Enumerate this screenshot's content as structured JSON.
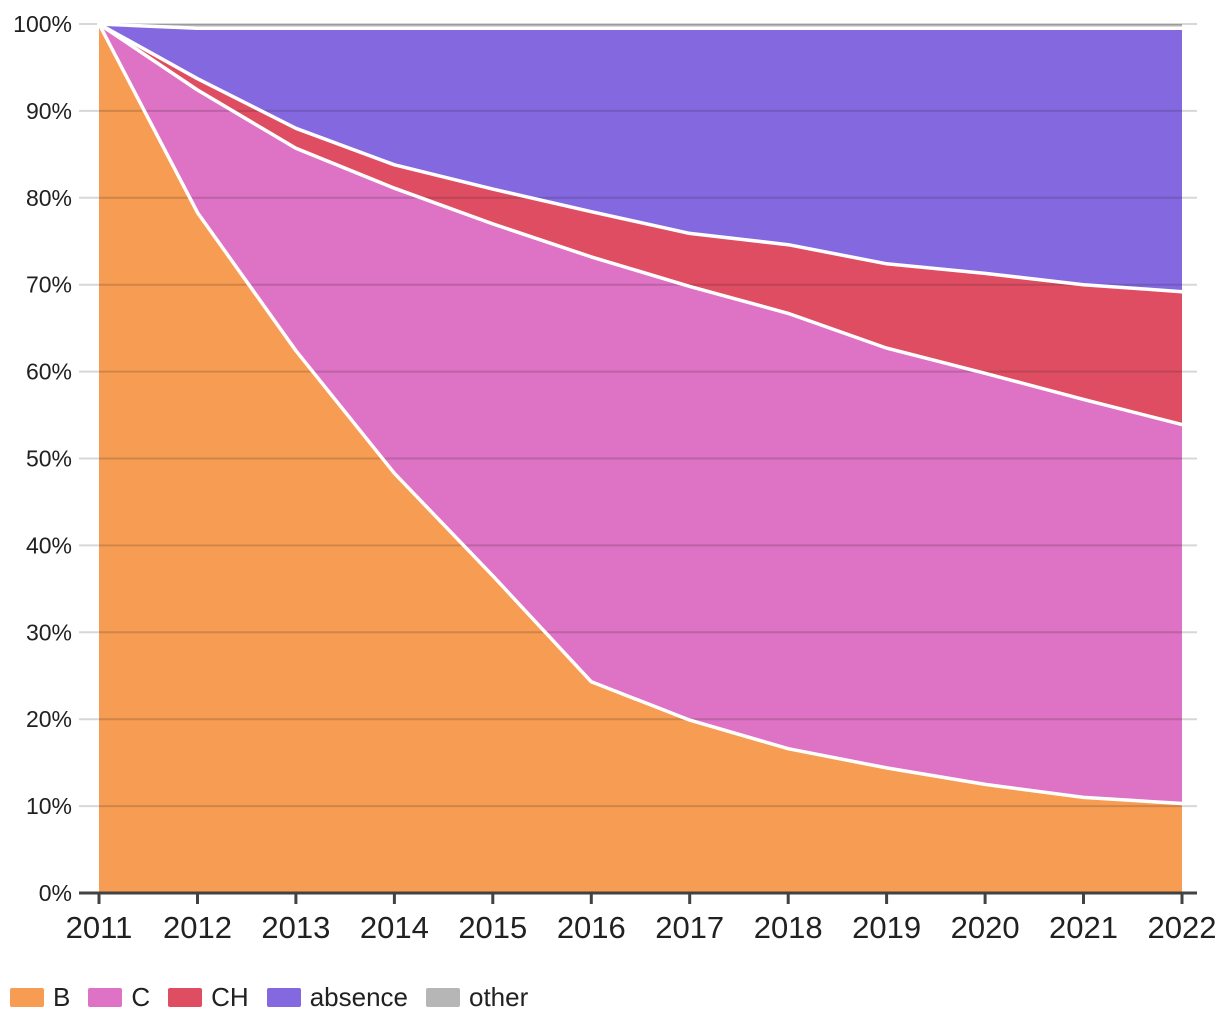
{
  "chart_data": {
    "type": "area",
    "stacked": true,
    "percentage": true,
    "title": "",
    "xlabel": "",
    "ylabel": "",
    "x": [
      2011,
      2012,
      2013,
      2014,
      2015,
      2016,
      2017,
      2018,
      2019,
      2020,
      2021,
      2022
    ],
    "x_tick_labels": [
      "2011",
      "2012",
      "2013",
      "2014",
      "2015",
      "2016",
      "2017",
      "2018",
      "2019",
      "2020",
      "2021",
      "2022"
    ],
    "series": [
      {
        "name": "B",
        "color": "#F69C53",
        "values": [
          100,
          78.3,
          62.4,
          48.3,
          36.5,
          24.3,
          19.9,
          16.6,
          14.4,
          12.5,
          11.0,
          10.3
        ]
      },
      {
        "name": "C",
        "color": "#DE72C4",
        "values": [
          0,
          14.1,
          23.3,
          32.8,
          40.5,
          48.9,
          49.9,
          50.1,
          48.3,
          47.3,
          45.8,
          43.6
        ]
      },
      {
        "name": "CH",
        "color": "#DF4D62",
        "values": [
          0,
          1.3,
          2.3,
          2.7,
          4.0,
          5.2,
          6.1,
          7.9,
          9.7,
          11.5,
          13.2,
          15.3
        ]
      },
      {
        "name": "absence",
        "color": "#8368E0",
        "values": [
          0,
          5.8,
          11.5,
          15.7,
          18.5,
          21.1,
          23.6,
          24.9,
          27.1,
          28.2,
          29.5,
          30.3
        ]
      },
      {
        "name": "other",
        "color": "#B6B6B6",
        "values": [
          0,
          0.5,
          0.5,
          0.5,
          0.5,
          0.5,
          0.5,
          0.5,
          0.5,
          0.5,
          0.5,
          0.5
        ]
      }
    ],
    "ylim": [
      0,
      100
    ],
    "yticks": [
      "0%",
      "10%",
      "20%",
      "30%",
      "40%",
      "50%",
      "60%",
      "70%",
      "80%",
      "90%",
      "100%"
    ],
    "grid": true,
    "legend_position": "bottom",
    "style": {
      "separator_color": "#FFFFFF",
      "gridline_color": "rgba(33,33,33,0.18)",
      "axis_line_color": "#424242",
      "text_color": "#212121"
    }
  }
}
